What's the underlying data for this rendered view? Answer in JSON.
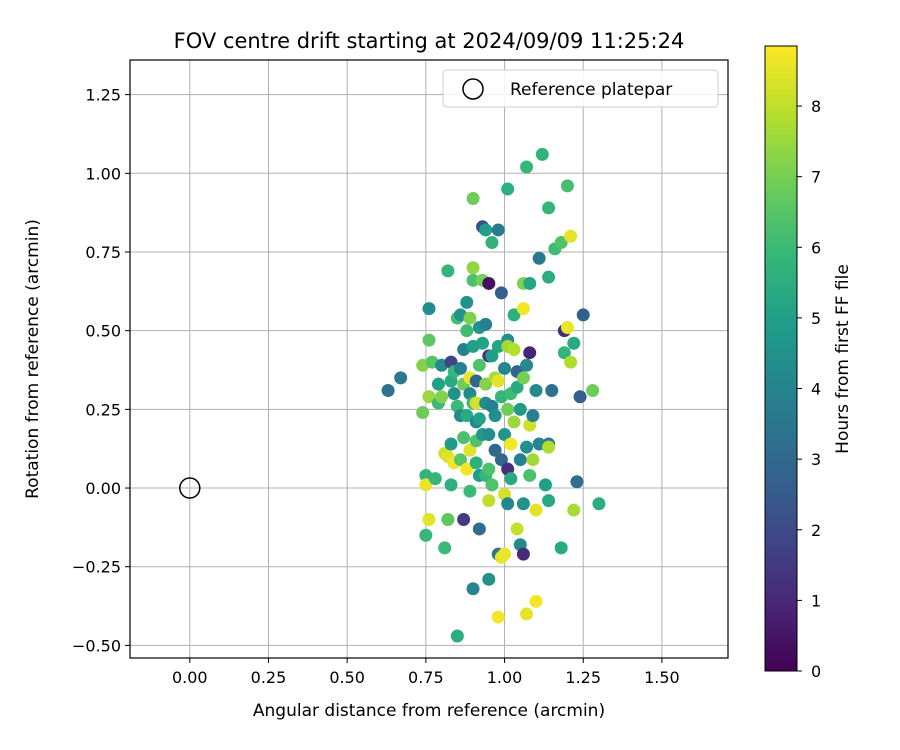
{
  "chart_data": {
    "type": "scatter",
    "title": "FOV centre drift starting at 2024/09/09 11:25:24",
    "xlabel": "Angular distance from reference (arcmin)",
    "ylabel": "Rotation from reference (arcmin)",
    "xlim": [
      -0.19,
      1.71
    ],
    "ylim": [
      -0.54,
      1.36
    ],
    "xticks": [
      "0.00",
      "0.25",
      "0.50",
      "0.75",
      "1.00",
      "1.25",
      "1.50"
    ],
    "xtick_values": [
      0,
      0.25,
      0.5,
      0.75,
      1.0,
      1.25,
      1.5
    ],
    "yticks": [
      "−0.50",
      "−0.25",
      "0.00",
      "0.25",
      "0.50",
      "0.75",
      "1.00",
      "1.25"
    ],
    "ytick_values": [
      -0.5,
      -0.25,
      0,
      0.25,
      0.5,
      0.75,
      1.0,
      1.25
    ],
    "grid": true,
    "legend": {
      "position": "top-right",
      "entries": [
        "Reference platepar"
      ]
    },
    "reference_point": {
      "x": 0.0,
      "y": 0.0,
      "label": "Reference platepar"
    },
    "colorbar": {
      "label": "Hours from first FF file",
      "min": 0,
      "max": 8.85,
      "ticks": [
        "0",
        "1",
        "2",
        "3",
        "4",
        "5",
        "6",
        "7",
        "8"
      ],
      "tick_values": [
        0,
        1,
        2,
        3,
        4,
        5,
        6,
        7,
        8
      ],
      "colormap": "viridis"
    },
    "points": [
      [
        0.63,
        0.31,
        3.3
      ],
      [
        0.67,
        0.35,
        3.6
      ],
      [
        0.74,
        0.24,
        6.9
      ],
      [
        0.74,
        0.39,
        7.2
      ],
      [
        0.75,
        0.04,
        5.8
      ],
      [
        0.75,
        0.01,
        8.6
      ],
      [
        0.76,
        -0.1,
        8.5
      ],
      [
        0.75,
        -0.15,
        5.9
      ],
      [
        0.76,
        0.47,
        6.6
      ],
      [
        0.76,
        0.57,
        4.3
      ],
      [
        0.76,
        0.29,
        7.5
      ],
      [
        0.77,
        0.4,
        6.5
      ],
      [
        0.78,
        0.03,
        5.9
      ],
      [
        0.79,
        0.33,
        5.0
      ],
      [
        0.79,
        0.27,
        6.0
      ],
      [
        0.8,
        0.29,
        7.2
      ],
      [
        0.8,
        0.39,
        4.2
      ],
      [
        0.81,
        0.11,
        8.2
      ],
      [
        0.81,
        -0.19,
        6.0
      ],
      [
        0.82,
        0.1,
        8.4
      ],
      [
        0.82,
        -0.1,
        6.6
      ],
      [
        0.82,
        0.69,
        5.8
      ],
      [
        0.83,
        0.34,
        5.4
      ],
      [
        0.83,
        0.01,
        5.6
      ],
      [
        0.83,
        0.14,
        4.8
      ],
      [
        0.83,
        0.4,
        1.8
      ],
      [
        0.84,
        0.37,
        5.9
      ],
      [
        0.84,
        0.08,
        8.7
      ],
      [
        0.84,
        0.3,
        4.5
      ],
      [
        0.85,
        -0.47,
        5.5
      ],
      [
        0.85,
        0.54,
        6.2
      ],
      [
        0.85,
        0.26,
        6.0
      ],
      [
        0.86,
        0.23,
        4.2
      ],
      [
        0.86,
        0.55,
        4.5
      ],
      [
        0.86,
        0.38,
        3.9
      ],
      [
        0.86,
        0.09,
        6.5
      ],
      [
        0.87,
        -0.1,
        1.5
      ],
      [
        0.87,
        0.44,
        3.9
      ],
      [
        0.87,
        0.16,
        6.3
      ],
      [
        0.87,
        0.33,
        6.9
      ],
      [
        0.88,
        0.59,
        4.5
      ],
      [
        0.88,
        0.23,
        5.4
      ],
      [
        0.88,
        0.5,
        6.1
      ],
      [
        0.88,
        0.06,
        8.7
      ],
      [
        0.89,
        0.3,
        4.2
      ],
      [
        0.89,
        0.54,
        7.1
      ],
      [
        0.89,
        0.12,
        8.4
      ],
      [
        0.89,
        0.35,
        8.6
      ],
      [
        0.89,
        -0.01,
        6.0
      ],
      [
        0.9,
        0.92,
        6.9
      ],
      [
        0.9,
        0.7,
        7.4
      ],
      [
        0.9,
        0.27,
        6.0
      ],
      [
        0.9,
        0.45,
        5.0
      ],
      [
        0.9,
        -0.32,
        4.0
      ],
      [
        0.9,
        0.66,
        6.3
      ],
      [
        0.91,
        0.34,
        2.9
      ],
      [
        0.91,
        0.27,
        8.3
      ],
      [
        0.91,
        0.15,
        6.4
      ],
      [
        0.91,
        0.21,
        4.0
      ],
      [
        0.91,
        0.08,
        5.6
      ],
      [
        0.92,
        0.39,
        6.4
      ],
      [
        0.92,
        0.04,
        4.8
      ],
      [
        0.92,
        0.51,
        4.6
      ],
      [
        0.92,
        0.22,
        5.1
      ],
      [
        0.92,
        -0.13,
        3.1
      ],
      [
        0.93,
        0.83,
        2.1
      ],
      [
        0.93,
        0.66,
        7.0
      ],
      [
        0.93,
        0.46,
        5.1
      ],
      [
        0.93,
        0.17,
        4.7
      ],
      [
        0.94,
        0.33,
        7.2
      ],
      [
        0.94,
        0.04,
        5.9
      ],
      [
        0.94,
        0.52,
        3.9
      ],
      [
        0.94,
        0.27,
        4.3
      ],
      [
        0.94,
        0.82,
        4.9
      ],
      [
        0.95,
        0.65,
        0.4
      ],
      [
        0.95,
        0.17,
        4.3
      ],
      [
        0.95,
        0.06,
        6.3
      ],
      [
        0.95,
        0.42,
        1.3
      ],
      [
        0.95,
        -0.04,
        8.0
      ],
      [
        0.95,
        -0.29,
        4.5
      ],
      [
        0.96,
        0.78,
        5.7
      ],
      [
        0.96,
        0.42,
        4.9
      ],
      [
        0.96,
        0.26,
        3.9
      ],
      [
        0.96,
        0.01,
        6.4
      ],
      [
        0.97,
        0.35,
        7.7
      ],
      [
        0.97,
        0.23,
        4.4
      ],
      [
        0.97,
        0.12,
        3.0
      ],
      [
        0.98,
        0.82,
        3.7
      ],
      [
        0.98,
        0.45,
        5.2
      ],
      [
        0.98,
        0.34,
        8.5
      ],
      [
        0.98,
        -0.21,
        3.5
      ],
      [
        0.98,
        -0.41,
        8.7
      ],
      [
        0.99,
        -0.22,
        8.5
      ],
      [
        0.99,
        0.62,
        2.7
      ],
      [
        0.99,
        0.29,
        5.8
      ],
      [
        0.99,
        0.09,
        2.9
      ],
      [
        1.0,
        0.38,
        4.1
      ],
      [
        1.0,
        0.17,
        4.6
      ],
      [
        1.0,
        -0.02,
        8.3
      ],
      [
        1.0,
        -0.21,
        8.6
      ],
      [
        1.01,
        0.95,
        5.6
      ],
      [
        1.01,
        0.47,
        4.3
      ],
      [
        1.01,
        0.25,
        6.9
      ],
      [
        1.01,
        0.06,
        1.2
      ],
      [
        1.01,
        -0.05,
        4.1
      ],
      [
        1.01,
        0.45,
        7.6
      ],
      [
        1.02,
        0.3,
        6.1
      ],
      [
        1.02,
        0.14,
        8.7
      ],
      [
        1.02,
        0.03,
        5.3
      ],
      [
        1.03,
        0.21,
        7.5
      ],
      [
        1.03,
        0.55,
        5.6
      ],
      [
        1.03,
        0.44,
        7.9
      ],
      [
        1.04,
        -0.13,
        8.1
      ],
      [
        1.04,
        0.37,
        2.9
      ],
      [
        1.04,
        0.32,
        5.4
      ],
      [
        1.05,
        0.09,
        3.9
      ],
      [
        1.05,
        -0.18,
        4.2
      ],
      [
        1.05,
        0.25,
        4.7
      ],
      [
        1.06,
        0.65,
        7.1
      ],
      [
        1.06,
        -0.05,
        4.5
      ],
      [
        1.06,
        0.57,
        8.7
      ],
      [
        1.06,
        0.35,
        7.0
      ],
      [
        1.06,
        -0.21,
        1.1
      ],
      [
        1.07,
        1.02,
        5.9
      ],
      [
        1.07,
        0.13,
        4.4
      ],
      [
        1.07,
        0.39,
        4.2
      ],
      [
        1.07,
        -0.4,
        8.5
      ],
      [
        1.08,
        0.43,
        0.9
      ],
      [
        1.08,
        0.2,
        8.2
      ],
      [
        1.08,
        0.04,
        6.3
      ],
      [
        1.08,
        0.65,
        5.2
      ],
      [
        1.09,
        0.09,
        7.6
      ],
      [
        1.09,
        0.23,
        3.9
      ],
      [
        1.1,
        0.31,
        4.2
      ],
      [
        1.1,
        -0.07,
        8.5
      ],
      [
        1.1,
        -0.36,
        8.7
      ],
      [
        1.11,
        0.73,
        3.5
      ],
      [
        1.11,
        0.14,
        4.1
      ],
      [
        1.12,
        1.06,
        5.7
      ],
      [
        1.13,
        0.01,
        5.0
      ],
      [
        1.14,
        0.67,
        5.5
      ],
      [
        1.14,
        0.89,
        5.8
      ],
      [
        1.14,
        0.14,
        3.5
      ],
      [
        1.14,
        0.13,
        7.8
      ],
      [
        1.14,
        -0.04,
        5.3
      ],
      [
        1.15,
        0.31,
        3.3
      ],
      [
        1.16,
        0.76,
        6.1
      ],
      [
        1.18,
        0.78,
        6.4
      ],
      [
        1.18,
        -0.19,
        5.4
      ],
      [
        1.19,
        0.43,
        5.8
      ],
      [
        1.19,
        0.5,
        1.2
      ],
      [
        1.2,
        0.51,
        8.6
      ],
      [
        1.2,
        0.96,
        6.2
      ],
      [
        1.21,
        0.8,
        8.5
      ],
      [
        1.21,
        0.4,
        7.8
      ],
      [
        1.22,
        -0.07,
        7.7
      ],
      [
        1.22,
        0.46,
        5.3
      ],
      [
        1.23,
        0.02,
        3.2
      ],
      [
        1.24,
        0.29,
        2.6
      ],
      [
        1.25,
        0.55,
        2.7
      ],
      [
        1.28,
        0.31,
        6.9
      ],
      [
        1.3,
        -0.05,
        5.5
      ]
    ]
  }
}
